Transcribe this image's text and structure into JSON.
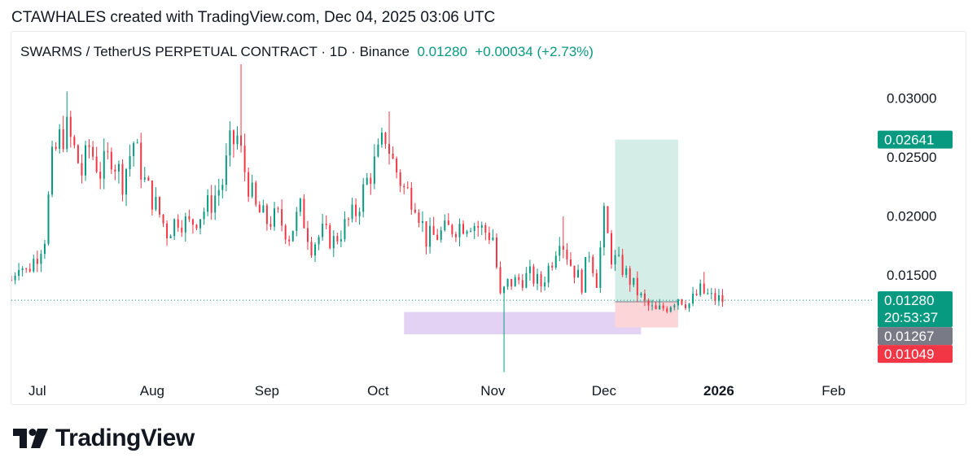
{
  "header": {
    "attribution": "CTAWHALES created with TradingView.com, Dec 04, 2025 03:06 UTC"
  },
  "legend": {
    "symbol": "SWARMS / TetherUS PERPETUAL CONTRACT · 1D · Binance",
    "price": "0.01280",
    "change": "+0.00034 (+2.73%)"
  },
  "footer": {
    "brand": "TradingView",
    "logo_icon": "tradingview-logo-icon"
  },
  "colors": {
    "up": "#089981",
    "down": "#f23645",
    "profit_zone": "#d4ede6",
    "stop_zone": "#fbd5d8",
    "support_zone": "#e3d2f3",
    "last_price_label": "#089981",
    "grey_label": "#787b86",
    "red_label": "#f23645"
  },
  "chart_data": {
    "type": "candlestick",
    "symbol": "SWARMS / TetherUS PERPETUAL CONTRACT",
    "timeframe": "1D",
    "exchange": "Binance",
    "x_tick_labels": [
      "Jul",
      "Aug",
      "Sep",
      "Oct",
      "Nov",
      "Dec",
      "2026",
      "Feb"
    ],
    "y_tick_labels": [
      "0.03000",
      "0.02500",
      "0.02000",
      "0.01500"
    ],
    "y_ticks": [
      0.03,
      0.025,
      0.02,
      0.015
    ],
    "ylim": [
      0.0066,
      0.0328
    ],
    "date_range": [
      "2025-06-24",
      "2026-02-12"
    ],
    "price_labels": [
      {
        "value": 0.02641,
        "text": "0.02641",
        "role": "target"
      },
      {
        "value": 0.0128,
        "text": "0.01280",
        "sub": "20:53:37",
        "role": "last"
      },
      {
        "value": 0.01267,
        "text": "0.01267",
        "role": "entry"
      },
      {
        "value": 0.01049,
        "text": "0.01049",
        "role": "stop"
      }
    ],
    "last_price": 0.0128,
    "position": {
      "type": "long",
      "start": "2025-12-04",
      "end": "2025-12-21",
      "entry": 0.01267,
      "target": 0.02641,
      "stop": 0.01049
    },
    "support_zone": {
      "start": "2025-10-08",
      "end": "2025-12-11",
      "top": 0.0118,
      "bottom": 0.0099
    },
    "close_path": [
      [
        "2025-06-24",
        0.0145
      ],
      [
        "2025-06-26",
        0.0161
      ],
      [
        "2025-06-28",
        0.0152
      ],
      [
        "2025-07-01",
        0.0167
      ],
      [
        "2025-07-03",
        0.0182
      ],
      [
        "2025-07-05",
        0.0245
      ],
      [
        "2025-07-07",
        0.0265
      ],
      [
        "2025-07-09",
        0.0272
      ],
      [
        "2025-07-11",
        0.0255
      ],
      [
        "2025-07-13",
        0.0236
      ],
      [
        "2025-07-15",
        0.0258
      ],
      [
        "2025-07-18",
        0.0237
      ],
      [
        "2025-07-21",
        0.0252
      ],
      [
        "2025-07-24",
        0.023
      ],
      [
        "2025-07-27",
        0.0262
      ],
      [
        "2025-07-30",
        0.0228
      ],
      [
        "2025-08-02",
        0.0208
      ],
      [
        "2025-08-05",
        0.0186
      ],
      [
        "2025-08-08",
        0.0198
      ],
      [
        "2025-08-11",
        0.0192
      ],
      [
        "2025-08-14",
        0.0201
      ],
      [
        "2025-08-17",
        0.0211
      ],
      [
        "2025-08-20",
        0.0228
      ],
      [
        "2025-08-22",
        0.0258
      ],
      [
        "2025-08-24",
        0.0266
      ],
      [
        "2025-08-26",
        0.0238
      ],
      [
        "2025-08-29",
        0.0205
      ],
      [
        "2025-09-01",
        0.0195
      ],
      [
        "2025-09-04",
        0.0198
      ],
      [
        "2025-09-07",
        0.0183
      ],
      [
        "2025-09-10",
        0.0205
      ],
      [
        "2025-09-13",
        0.0175
      ],
      [
        "2025-09-16",
        0.0185
      ],
      [
        "2025-09-19",
        0.0178
      ],
      [
        "2025-09-22",
        0.0191
      ],
      [
        "2025-09-25",
        0.0203
      ],
      [
        "2025-09-28",
        0.0229
      ],
      [
        "2025-10-01",
        0.025
      ],
      [
        "2025-10-03",
        0.0268
      ],
      [
        "2025-10-05",
        0.0245
      ],
      [
        "2025-10-08",
        0.0222
      ],
      [
        "2025-10-11",
        0.0214
      ],
      [
        "2025-10-14",
        0.018
      ],
      [
        "2025-10-17",
        0.0183
      ],
      [
        "2025-10-20",
        0.0188
      ],
      [
        "2025-10-23",
        0.0192
      ],
      [
        "2025-10-26",
        0.0195
      ],
      [
        "2025-10-29",
        0.0188
      ],
      [
        "2025-11-01",
        0.0182
      ],
      [
        "2025-11-03",
        0.013
      ],
      [
        "2025-11-05",
        0.0142
      ],
      [
        "2025-11-08",
        0.0145
      ],
      [
        "2025-11-11",
        0.0149
      ],
      [
        "2025-11-14",
        0.0141
      ],
      [
        "2025-11-17",
        0.0163
      ],
      [
        "2025-11-19",
        0.0184
      ],
      [
        "2025-11-22",
        0.0159
      ],
      [
        "2025-11-25",
        0.0142
      ],
      [
        "2025-11-27",
        0.017
      ],
      [
        "2025-11-29",
        0.0145
      ],
      [
        "2025-12-01",
        0.0198
      ],
      [
        "2025-12-03",
        0.0165
      ],
      [
        "2025-12-06",
        0.0155
      ],
      [
        "2025-12-09",
        0.014
      ],
      [
        "2025-12-12",
        0.0125
      ],
      [
        "2025-12-15",
        0.0118
      ],
      [
        "2025-12-18",
        0.0123
      ],
      [
        "2025-12-21",
        0.0131
      ],
      [
        "2025-12-24",
        0.0125
      ],
      [
        "2025-12-27",
        0.0136
      ],
      [
        "2025-12-30",
        0.013
      ],
      [
        "2026-01-02",
        0.0128
      ]
    ],
    "spikes": [
      {
        "date": "2025-07-09",
        "high": 0.0305
      },
      {
        "date": "2025-08-25",
        "high": 0.0328
      },
      {
        "date": "2025-10-04",
        "high": 0.0288
      },
      {
        "date": "2025-11-04",
        "low": 0.0067
      },
      {
        "date": "2025-11-20",
        "high": 0.0199
      },
      {
        "date": "2025-12-02",
        "high": 0.0203
      },
      {
        "date": "2025-12-28",
        "high": 0.0152
      }
    ]
  }
}
